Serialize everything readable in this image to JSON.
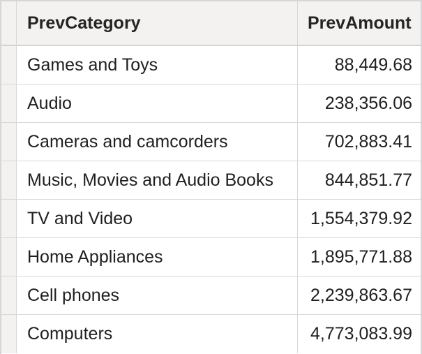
{
  "table": {
    "columns": [
      "PrevCategory",
      "PrevAmount"
    ],
    "rows": [
      {
        "category": "Games and Toys",
        "amount": "88,449.68"
      },
      {
        "category": "Audio",
        "amount": "238,356.06"
      },
      {
        "category": "Cameras and camcorders",
        "amount": "702,883.41"
      },
      {
        "category": "Music, Movies and Audio Books",
        "amount": "844,851.77"
      },
      {
        "category": "TV and Video",
        "amount": "1,554,379.92"
      },
      {
        "category": "Home Appliances",
        "amount": "1,895,771.88"
      },
      {
        "category": "Cell phones",
        "amount": "2,239,863.67"
      },
      {
        "category": "Computers",
        "amount": "4,773,083.99"
      }
    ]
  }
}
